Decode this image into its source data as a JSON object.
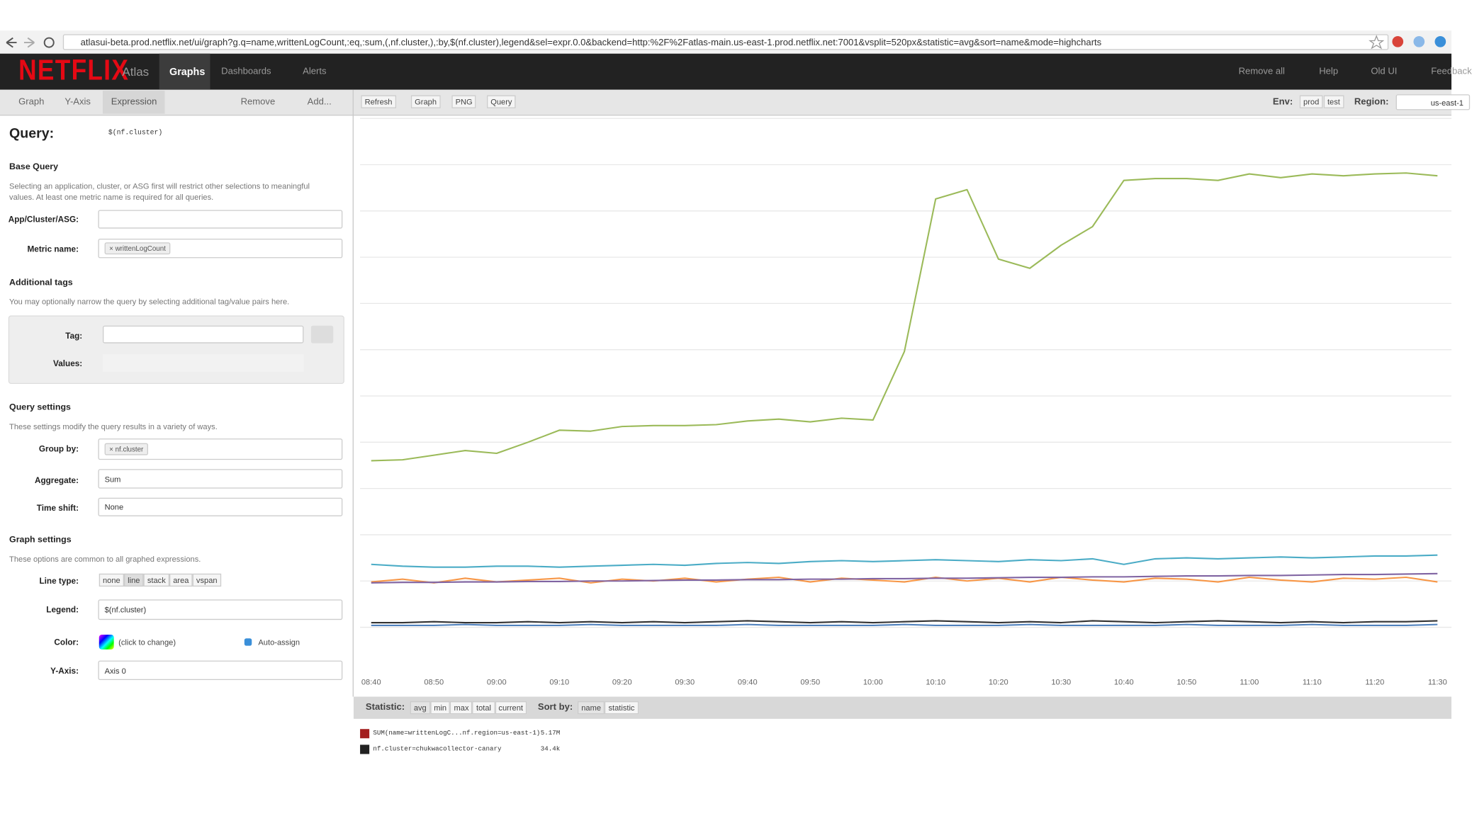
{
  "browser": {
    "url": "atlasui-beta.prod.netflix.net/ui/graph?g.q=name,writtenLogCount,:eq,:sum,(,nf.cluster,),:by,$(nf.cluster),legend&sel=expr.0.0&backend=http:%2F%2Fatlas-main.us-east-1.prod.netflix.net:7001&vsplit=520px&statistic=avg&sort=name&mode=highcharts"
  },
  "header": {
    "logo": "NETFLIX",
    "nav": [
      "Atlas",
      "Graphs",
      "Dashboards",
      "Alerts"
    ],
    "actions": [
      "Remove all",
      "Help",
      "Old UI",
      "Feedback"
    ]
  },
  "toolbar": {
    "tabs": [
      "Graph",
      "Y-Axis",
      "Expression"
    ],
    "remove": "Remove",
    "add": "Add...",
    "buttons": [
      "Refresh",
      "Graph",
      "PNG",
      "Query"
    ],
    "env_label": "Env:",
    "envs": [
      "prod",
      "test"
    ],
    "region_label": "Region:",
    "region": "us-east-1"
  },
  "query": {
    "title": "Query:",
    "expr": "$(nf.cluster)"
  },
  "base_query": {
    "title": "Base Query",
    "desc": "Selecting an application, cluster, or ASG first will restrict other selections to meaningful values. At least one metric name is required for all queries.",
    "app_label": "App/Cluster/ASG:",
    "metric_label": "Metric name:",
    "metric": "writtenLogCount"
  },
  "additional_tags": {
    "title": "Additional tags",
    "desc": "You may optionally narrow the query by selecting additional tag/value pairs here.",
    "tag_label": "Tag:",
    "values_label": "Values:"
  },
  "query_settings": {
    "title": "Query settings",
    "desc": "These settings modify the query results in a variety of ways.",
    "group_label": "Group by:",
    "group": "nf.cluster",
    "aggregate_label": "Aggregate:",
    "aggregate": "Sum",
    "shift_label": "Time shift:",
    "shift": "None"
  },
  "graph_settings": {
    "title": "Graph settings",
    "desc": "These options are common to all graphed expressions.",
    "line_label": "Line type:",
    "line_types": [
      "none",
      "line",
      "stack",
      "area",
      "vspan"
    ],
    "legend_label": "Legend:",
    "legend": "$(nf.cluster)",
    "color_label": "Color:",
    "color_hint": "(click to change)",
    "auto": "Auto-assign",
    "axis_label": "Y-Axis:",
    "axis": "Axis 0"
  },
  "stats": {
    "statistic_label": "Statistic:",
    "statistics": [
      "avg",
      "min",
      "max",
      "total",
      "current"
    ],
    "sort_label": "Sort by:",
    "sorts": [
      "name",
      "statistic"
    ]
  },
  "legend": [
    {
      "color": "#a31f1f",
      "name": "SUM(name=writtenLogC...nf.region=us-east-1)",
      "value": "5.17M"
    },
    {
      "color": "#222222",
      "name": "nf.cluster=chukwacollector-canary",
      "value": "34.4k"
    }
  ],
  "graph": {
    "type": "line",
    "ylim": [
      0,
      12
    ],
    "categories": [
      "08:40",
      null,
      "08:50",
      null,
      "09:00",
      null,
      "09:10",
      null,
      "09:20",
      null,
      "09:30",
      null,
      "09:40",
      null,
      "09:50",
      null,
      "10:00",
      null,
      "10:10",
      null,
      "10:20",
      null,
      "10:30",
      null,
      "10:40",
      null,
      "10:50",
      null,
      "11:00",
      null,
      "11:10",
      null,
      "11:20",
      null,
      "11:30"
    ],
    "series": [
      {
        "color": "#9bba59",
        "values": [
          4.6,
          4.62,
          4.72,
          4.82,
          4.76,
          5.0,
          5.26,
          5.24,
          5.34,
          5.36,
          5.36,
          5.38,
          5.46,
          5.5,
          5.44,
          5.52,
          5.48,
          6.96,
          10.26,
          10.46,
          8.96,
          8.76,
          9.26,
          9.66,
          10.66,
          10.7,
          10.7,
          10.66,
          10.8,
          10.72,
          10.8,
          10.76,
          10.8,
          10.82,
          10.76
        ]
      },
      {
        "color": "#4bacc6",
        "values": [
          2.36,
          2.32,
          2.3,
          2.3,
          2.32,
          2.32,
          2.3,
          2.32,
          2.34,
          2.36,
          2.34,
          2.38,
          2.4,
          2.38,
          2.42,
          2.44,
          2.42,
          2.44,
          2.46,
          2.44,
          2.42,
          2.46,
          2.44,
          2.48,
          2.36,
          2.48,
          2.5,
          2.48,
          2.5,
          2.52,
          2.5,
          2.52,
          2.54,
          2.54,
          2.56
        ]
      },
      {
        "color": "#f79646",
        "values": [
          1.98,
          2.04,
          1.96,
          2.06,
          1.98,
          2.02,
          2.06,
          1.96,
          2.04,
          2.0,
          2.06,
          1.98,
          2.04,
          2.08,
          1.98,
          2.06,
          2.02,
          1.98,
          2.08,
          2.0,
          2.06,
          1.98,
          2.08,
          2.02,
          1.98,
          2.06,
          2.04,
          1.98,
          2.08,
          2.02,
          1.98,
          2.06,
          2.04,
          2.08,
          1.98
        ]
      },
      {
        "color": "#8064a2",
        "values": [
          1.96,
          1.97,
          1.97,
          1.98,
          1.98,
          1.99,
          1.99,
          2.0,
          2.0,
          2.01,
          2.02,
          2.02,
          2.03,
          2.03,
          2.04,
          2.04,
          2.05,
          2.05,
          2.06,
          2.06,
          2.07,
          2.08,
          2.08,
          2.09,
          2.09,
          2.1,
          2.11,
          2.11,
          2.12,
          2.12,
          2.13,
          2.14,
          2.14,
          2.15,
          2.16
        ]
      },
      {
        "color": "#333333",
        "values": [
          1.1,
          1.1,
          1.12,
          1.1,
          1.1,
          1.12,
          1.1,
          1.12,
          1.1,
          1.12,
          1.1,
          1.12,
          1.14,
          1.12,
          1.1,
          1.12,
          1.1,
          1.12,
          1.14,
          1.12,
          1.1,
          1.12,
          1.1,
          1.14,
          1.12,
          1.1,
          1.12,
          1.14,
          1.12,
          1.1,
          1.12,
          1.1,
          1.12,
          1.12,
          1.14
        ]
      },
      {
        "color": "#4f81bd",
        "values": [
          1.04,
          1.04,
          1.04,
          1.06,
          1.04,
          1.04,
          1.04,
          1.06,
          1.04,
          1.04,
          1.04,
          1.04,
          1.06,
          1.04,
          1.04,
          1.04,
          1.04,
          1.06,
          1.04,
          1.04,
          1.04,
          1.06,
          1.04,
          1.04,
          1.04,
          1.04,
          1.06,
          1.04,
          1.04,
          1.04,
          1.06,
          1.04,
          1.04,
          1.04,
          1.06
        ]
      }
    ]
  }
}
